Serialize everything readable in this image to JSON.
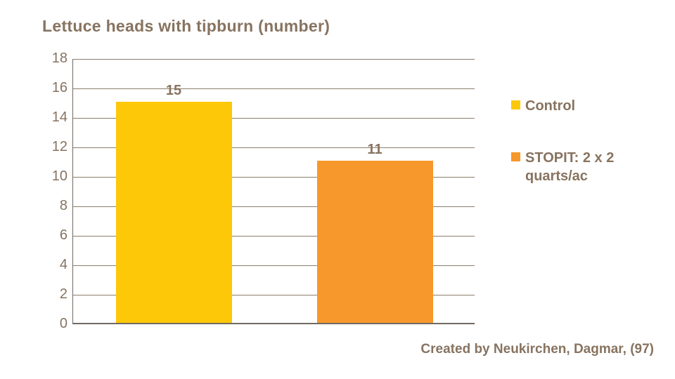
{
  "title": "Lettuce heads with tipburn (number)",
  "attribution": "Created by Neukirchen, Dagmar, (97)",
  "colors": {
    "control_yellow": "#FDC808",
    "stopit_orange": "#F6982B",
    "text_brown": "#877360",
    "gridline": "#8C7D6B",
    "axis": "#716A61"
  },
  "chart_data": {
    "type": "bar",
    "title": "Lettuce heads with tipburn (number)",
    "categories": [
      "Control",
      "STOPIT: 2 x 2 quarts/ac"
    ],
    "values": [
      15,
      11
    ],
    "data_labels": [
      "15",
      "11"
    ],
    "bar_colors": [
      "#FDC808",
      "#F6982B"
    ],
    "xlabel": "",
    "ylabel": "",
    "ylim": [
      0,
      18
    ],
    "yticks": [
      0,
      2,
      4,
      6,
      8,
      10,
      12,
      14,
      16,
      18
    ],
    "grid": true,
    "legend_position": "right",
    "legend": [
      {
        "label": "Control",
        "color": "#FDC808"
      },
      {
        "label": "STOPIT: 2 x 2 quarts/ac",
        "color": "#F6982B"
      }
    ],
    "annotations": [
      "Created by Neukirchen, Dagmar, (97)"
    ]
  }
}
